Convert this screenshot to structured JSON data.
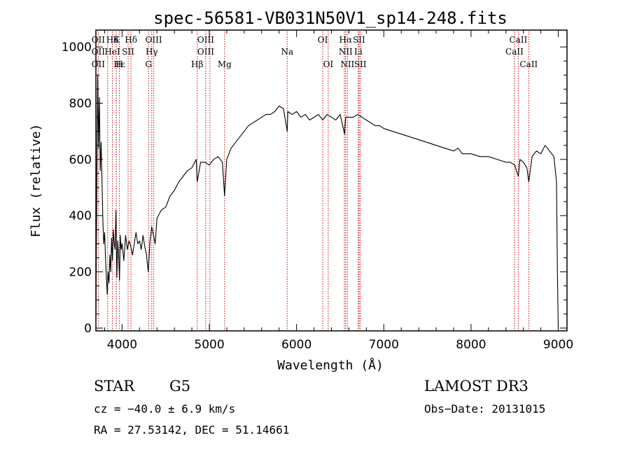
{
  "chart_data": {
    "type": "line",
    "title": "spec-56581-VB031N50V1_sp14-248.fits",
    "xlabel": "Wavelength (Å)",
    "ylabel": "Flux (relative)",
    "xlim": [
      3700,
      9100
    ],
    "ylim": [
      -10,
      1060
    ],
    "xticks": [
      4000,
      5000,
      6000,
      7000,
      8000,
      9000
    ],
    "yticks": [
      0,
      200,
      400,
      600,
      800,
      1000
    ],
    "series": [
      {
        "name": "flux",
        "x": [
          3700,
          3710,
          3720,
          3730,
          3740,
          3750,
          3760,
          3770,
          3780,
          3790,
          3800,
          3810,
          3820,
          3830,
          3840,
          3850,
          3860,
          3870,
          3880,
          3890,
          3900,
          3910,
          3920,
          3930,
          3940,
          3950,
          3960,
          3970,
          3980,
          3990,
          4000,
          4020,
          4040,
          4060,
          4080,
          4100,
          4120,
          4140,
          4160,
          4180,
          4200,
          4220,
          4240,
          4260,
          4280,
          4300,
          4320,
          4340,
          4360,
          4380,
          4400,
          4450,
          4500,
          4550,
          4600,
          4650,
          4700,
          4750,
          4800,
          4850,
          4861,
          4900,
          4950,
          5000,
          5050,
          5100,
          5150,
          5175,
          5200,
          5250,
          5300,
          5350,
          5400,
          5450,
          5500,
          5550,
          5600,
          5650,
          5700,
          5750,
          5800,
          5850,
          5893,
          5900,
          5950,
          6000,
          6050,
          6100,
          6150,
          6200,
          6250,
          6300,
          6350,
          6400,
          6450,
          6500,
          6550,
          6563,
          6600,
          6650,
          6700,
          6750,
          6800,
          6850,
          6900,
          6950,
          7000,
          7100,
          7200,
          7300,
          7400,
          7500,
          7600,
          7700,
          7800,
          7850,
          7900,
          8000,
          8100,
          8200,
          8300,
          8400,
          8450,
          8500,
          8542,
          8560,
          8600,
          8640,
          8662,
          8700,
          8750,
          8800,
          8850,
          8900,
          8950,
          8980,
          8990,
          9000
        ],
        "values": [
          30,
          470,
          900,
          640,
          820,
          560,
          660,
          520,
          380,
          300,
          340,
          250,
          180,
          120,
          200,
          160,
          260,
          200,
          320,
          240,
          350,
          300,
          280,
          420,
          180,
          310,
          260,
          170,
          330,
          280,
          300,
          240,
          330,
          280,
          310,
          290,
          260,
          300,
          340,
          300,
          310,
          280,
          330,
          290,
          260,
          200,
          310,
          360,
          330,
          300,
          390,
          420,
          430,
          470,
          490,
          520,
          540,
          560,
          570,
          600,
          520,
          590,
          590,
          580,
          600,
          610,
          590,
          470,
          600,
          640,
          660,
          680,
          700,
          720,
          730,
          740,
          750,
          760,
          760,
          770,
          790,
          780,
          700,
          770,
          760,
          770,
          750,
          760,
          740,
          750,
          760,
          740,
          760,
          750,
          740,
          760,
          690,
          750,
          750,
          750,
          760,
          750,
          740,
          730,
          720,
          720,
          710,
          700,
          690,
          680,
          670,
          660,
          650,
          640,
          630,
          640,
          620,
          620,
          610,
          610,
          600,
          590,
          590,
          580,
          540,
          600,
          590,
          570,
          520,
          610,
          630,
          620,
          650,
          630,
          610,
          520,
          200,
          0
        ]
      }
    ],
    "spectral_lines": [
      {
        "label": "Hδ",
        "x": 3889,
        "row": 0
      },
      {
        "label": "OII",
        "x": 3727,
        "row": 0
      },
      {
        "label": "K",
        "x": 3934,
        "row": 0
      },
      {
        "label": "Hδ",
        "x": 4102,
        "row": 0
      },
      {
        "label": "OIII",
        "x": 4363,
        "row": 0
      },
      {
        "label": "OIII",
        "x": 4959,
        "row": 0
      },
      {
        "label": "OI",
        "x": 6300,
        "row": 0
      },
      {
        "label": "Hα",
        "x": 6563,
        "row": 0
      },
      {
        "label": "SII",
        "x": 6716,
        "row": 0
      },
      {
        "label": "CaII",
        "x": 8542,
        "row": 0
      },
      {
        "label": "OII",
        "x": 3727,
        "row": 1
      },
      {
        "label": "HeI",
        "x": 3889,
        "row": 1
      },
      {
        "label": "SII",
        "x": 4069,
        "row": 1
      },
      {
        "label": "Hγ",
        "x": 4340,
        "row": 1
      },
      {
        "label": "OIII",
        "x": 4959,
        "row": 1
      },
      {
        "label": "Na",
        "x": 5893,
        "row": 1
      },
      {
        "label": "NII",
        "x": 6563,
        "row": 1
      },
      {
        "label": "Li",
        "x": 6708,
        "row": 1
      },
      {
        "label": "CaII",
        "x": 8498,
        "row": 1
      },
      {
        "label": "OII",
        "x": 3727,
        "row": 2
      },
      {
        "label": "Hε",
        "x": 3970,
        "row": 2
      },
      {
        "label": "H",
        "x": 3968,
        "row": 2
      },
      {
        "label": "G",
        "x": 4304,
        "row": 2
      },
      {
        "label": "Hβ",
        "x": 4861,
        "row": 2
      },
      {
        "label": "Mg",
        "x": 5175,
        "row": 2
      },
      {
        "label": "OI",
        "x": 6363,
        "row": 2
      },
      {
        "label": "NII",
        "x": 6583,
        "row": 2
      },
      {
        "label": "SII",
        "x": 6731,
        "row": 2
      },
      {
        "label": "CaII",
        "x": 8662,
        "row": 2
      }
    ],
    "line_markers": [
      3727,
      3835,
      3889,
      3934,
      3970,
      4069,
      4102,
      4304,
      4340,
      4363,
      4861,
      4959,
      5007,
      5175,
      5893,
      6300,
      6363,
      6548,
      6563,
      6583,
      6708,
      6716,
      6731,
      8498,
      8542,
      8662
    ]
  },
  "info": {
    "object_class": "STAR",
    "subclass": "G5",
    "survey": "LAMOST DR3",
    "redshift": "cz = −40.0 ± 6.9 km/s",
    "obs_date": "Obs−Date: 20131015",
    "coords": "RA =  27.53142, DEC =  51.14661"
  },
  "colors": {
    "axis": "#000000",
    "spectrum": "#000000",
    "marker": "#cc0000"
  }
}
